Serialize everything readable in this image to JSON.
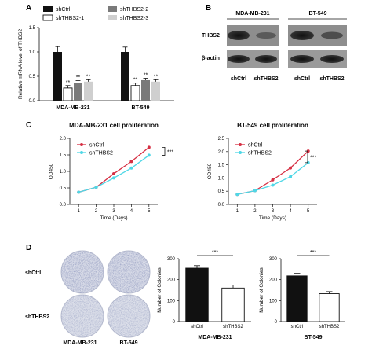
{
  "panels": {
    "a": "A",
    "b": "B",
    "c": "C",
    "d": "D"
  },
  "colors": {
    "black": "#111111",
    "gray_dark": "#7a7a7a",
    "gray_light": "#cfcfcf",
    "red": "#d62f43",
    "cyan": "#4ed7e6",
    "plate_bg": "#d8dbe6",
    "colony": "#5c6898"
  },
  "chart_data": [
    {
      "id": "A",
      "type": "bar",
      "ylabel": "Relative mRNA level of THBS2",
      "ylim": [
        0,
        1.5
      ],
      "yticks": [
        "0.0",
        "0.5",
        "1.0",
        "1.5"
      ],
      "categories": [
        "MDA-MB-231",
        "BT-549"
      ],
      "series": [
        {
          "name": "shCtrl",
          "values": [
            1.0,
            1.0
          ],
          "errors": [
            0.11,
            0.1
          ],
          "sig": [
            "",
            ""
          ],
          "color": "#111111",
          "filled": true
        },
        {
          "name": "shTHBS2-1",
          "values": [
            0.26,
            0.31
          ],
          "errors": [
            0.05,
            0.05
          ],
          "sig": [
            "**",
            "**"
          ],
          "color": "#ffffff",
          "filled": false
        },
        {
          "name": "shTHBS2-2",
          "values": [
            0.37,
            0.42
          ],
          "errors": [
            0.04,
            0.04
          ],
          "sig": [
            "**",
            "**"
          ],
          "color": "#7a7a7a",
          "filled": true
        },
        {
          "name": "shTHBS2-3",
          "values": [
            0.39,
            0.39
          ],
          "errors": [
            0.04,
            0.04
          ],
          "sig": [
            "**",
            "**"
          ],
          "color": "#cfcfcf",
          "filled": true
        }
      ],
      "legend": "top"
    },
    {
      "id": "C1",
      "type": "line",
      "title": "MDA-MB-231 cell proliferation",
      "xlabel": "Time (Days)",
      "ylabel": "OD450",
      "x": [
        1,
        2,
        3,
        4,
        5
      ],
      "xlim": [
        0.5,
        5.5
      ],
      "ylim": [
        0.0,
        2.0
      ],
      "yticks": [
        "0.0",
        "0.5",
        "1.0",
        "1.5",
        "2.0"
      ],
      "series": [
        {
          "name": "shCtrl",
          "values": [
            0.37,
            0.52,
            0.93,
            1.3,
            1.73
          ],
          "color": "#d62f43"
        },
        {
          "name": "shTHBS2",
          "values": [
            0.37,
            0.52,
            0.8,
            1.1,
            1.49
          ],
          "color": "#4ed7e6"
        }
      ],
      "significance": "***",
      "legend": "top-left"
    },
    {
      "id": "C2",
      "type": "line",
      "title": "BT-549 cell proliferation",
      "xlabel": "Time (Days)",
      "ylabel": "OD450",
      "x": [
        1,
        2,
        3,
        4,
        5
      ],
      "xlim": [
        0.5,
        5.5
      ],
      "ylim": [
        0.0,
        2.5
      ],
      "yticks": [
        "0.0",
        "0.5",
        "1.0",
        "1.5",
        "2.0",
        "2.5"
      ],
      "series": [
        {
          "name": "shCtrl",
          "values": [
            0.38,
            0.52,
            0.93,
            1.38,
            2.02
          ],
          "color": "#d62f43"
        },
        {
          "name": "shTHBS2",
          "values": [
            0.38,
            0.52,
            0.73,
            1.05,
            1.58
          ],
          "color": "#4ed7e6"
        }
      ],
      "significance": "***",
      "legend": "top-left"
    },
    {
      "id": "D1",
      "type": "bar",
      "xlabel": "MDA-MB-231",
      "ylabel": "Number of Colonies",
      "ylim": [
        0,
        300
      ],
      "yticks": [
        "0",
        "100",
        "200",
        "300"
      ],
      "categories": [
        "shCtrl",
        "shTHBS2"
      ],
      "values": [
        255,
        160
      ],
      "errors": [
        12,
        14
      ],
      "colors": [
        "#111111",
        "#ffffff"
      ],
      "significance": "***"
    },
    {
      "id": "D2",
      "type": "bar",
      "xlabel": "BT-549",
      "ylabel": "Number of Colonies",
      "ylim": [
        0,
        300
      ],
      "yticks": [
        "0",
        "100",
        "200",
        "300"
      ],
      "categories": [
        "shCtrl",
        "shTHBS2"
      ],
      "values": [
        218,
        133
      ],
      "errors": [
        12,
        10
      ],
      "colors": [
        "#111111",
        "#ffffff"
      ],
      "significance": "***"
    }
  ],
  "blot": {
    "lines": [
      "MDA-MB-231",
      "BT-549"
    ],
    "rows": [
      "THBS2",
      "β-actin"
    ],
    "lanes": [
      "shCtrl",
      "shTHBS2",
      "shCtrl",
      "shTHBS2"
    ]
  },
  "plates": {
    "row_labels": [
      "shCtrl",
      "shTHBS2"
    ],
    "col_labels": [
      "MDA-MB-231",
      "BT-549"
    ]
  }
}
